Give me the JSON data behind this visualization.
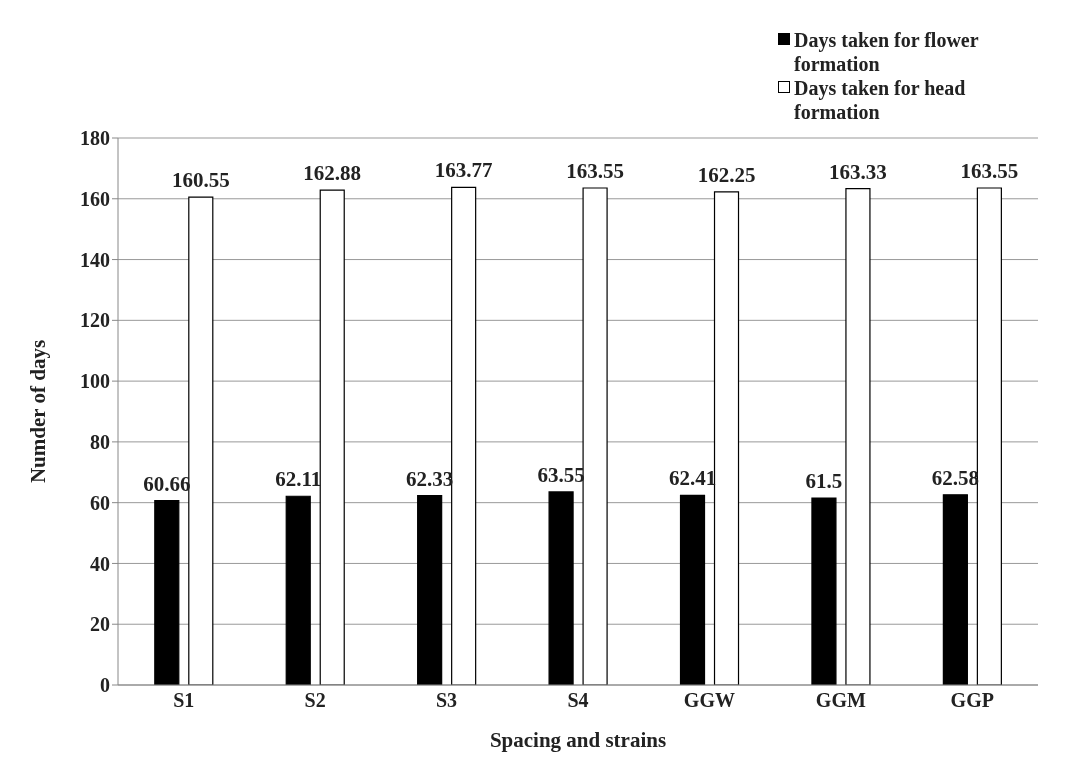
{
  "chart_data": {
    "type": "bar",
    "xlabel": "Spacing and strains",
    "ylabel": "Numder of days",
    "categories": [
      "S1",
      "S2",
      "S3",
      "S4",
      "GGW",
      "GGM",
      "GGP"
    ],
    "series": [
      {
        "name": "Days taken for flower formation",
        "color": "#000000",
        "values": [
          60.66,
          62.11,
          62.33,
          63.55,
          62.41,
          61.5,
          62.58
        ]
      },
      {
        "name": "Days taken for head formation",
        "color": "#ffffff",
        "values": [
          160.55,
          162.88,
          163.77,
          163.55,
          162.25,
          163.33,
          163.55
        ]
      }
    ],
    "ylim": [
      0,
      180
    ],
    "yticks": [
      0,
      20,
      40,
      60,
      80,
      100,
      120,
      140,
      160,
      180
    ],
    "grid": "y",
    "legend": "top right",
    "data_labels": true
  }
}
